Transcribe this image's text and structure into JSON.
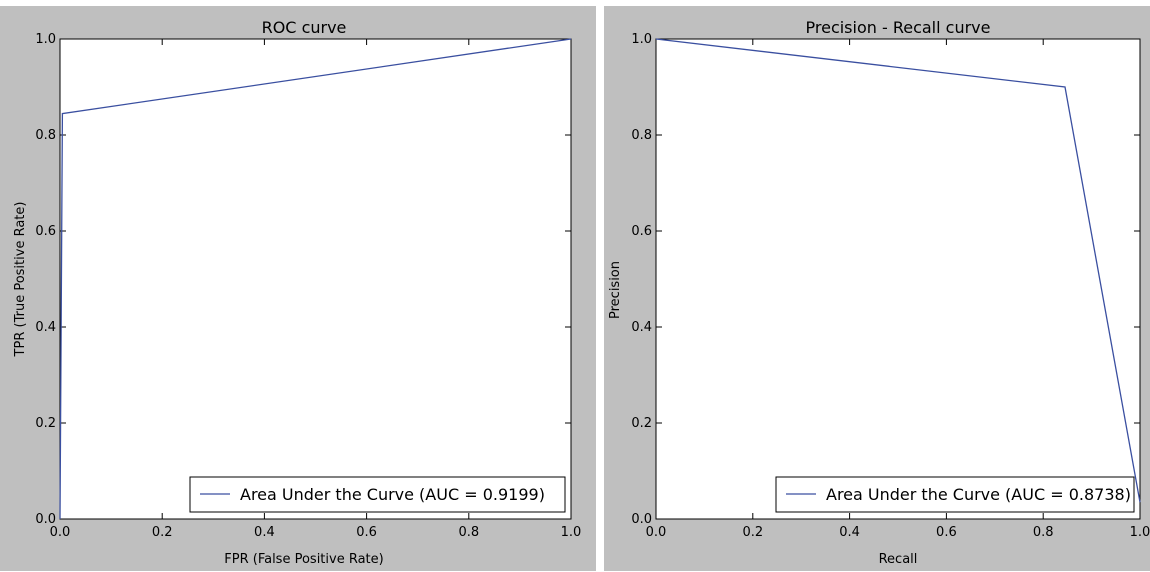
{
  "chart_data": [
    {
      "type": "line",
      "title": "ROC curve",
      "xlabel": "FPR (False Positive Rate)",
      "ylabel": "TPR (True Positive Rate)",
      "xlim": [
        0,
        1
      ],
      "ylim": [
        0,
        1
      ],
      "xticks": [
        "0.0",
        "0.2",
        "0.4",
        "0.6",
        "0.8",
        "1.0"
      ],
      "yticks": [
        "0.0",
        "0.2",
        "0.4",
        "0.6",
        "0.8",
        "1.0"
      ],
      "grid": false,
      "legend_position": "lower-right",
      "series": [
        {
          "name": "Area Under the Curve (AUC = 0.9199)",
          "color": "#3a4fa0",
          "x": [
            0,
            0.0,
            0.0046,
            1.0
          ],
          "y": [
            0,
            0.0,
            0.8445,
            1.0
          ]
        }
      ]
    },
    {
      "type": "line",
      "title": "Precision - Recall curve",
      "xlabel": "Recall",
      "ylabel": "Precision",
      "xlim": [
        0,
        1
      ],
      "ylim": [
        0,
        1
      ],
      "xticks": [
        "0.0",
        "0.2",
        "0.4",
        "0.6",
        "0.8",
        "1.0"
      ],
      "yticks": [
        "0.0",
        "0.2",
        "0.4",
        "0.6",
        "0.8",
        "1.0"
      ],
      "grid": false,
      "legend_position": "lower-right",
      "series": [
        {
          "name": "Area Under the Curve (AUC = 0.8738)",
          "color": "#3a4fa0",
          "x": [
            0.0,
            0.845,
            1.0
          ],
          "y": [
            1.0,
            0.9,
            0.035
          ]
        }
      ]
    }
  ]
}
